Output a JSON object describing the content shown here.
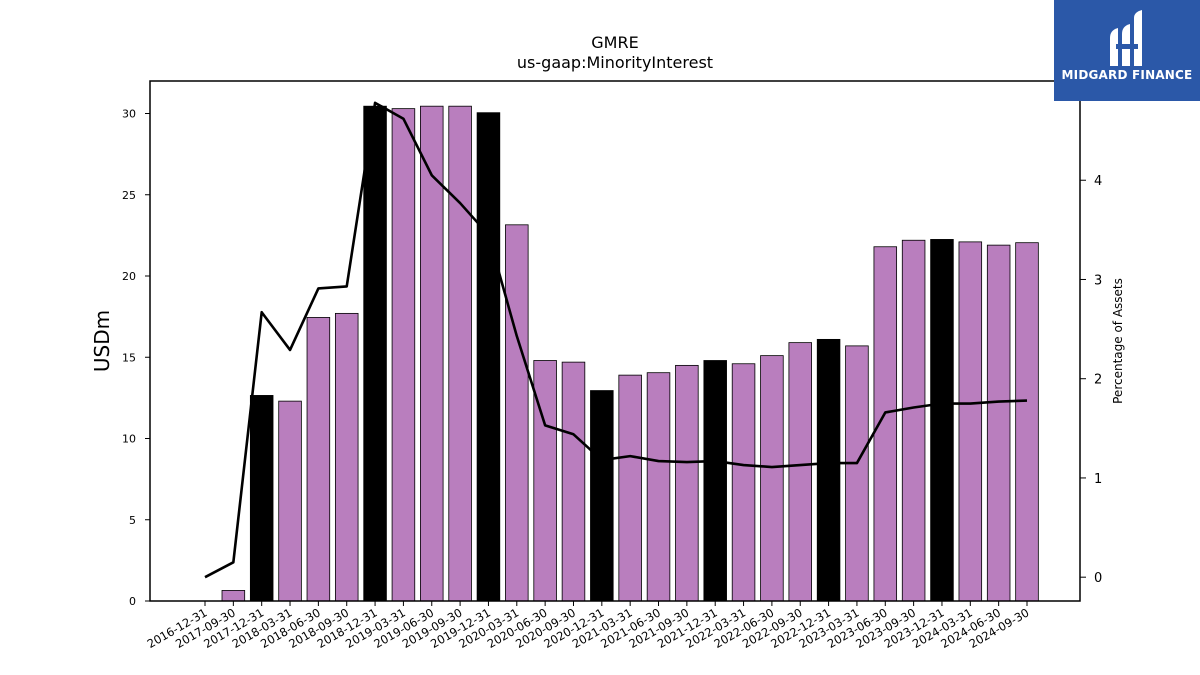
{
  "chart_data": {
    "type": "bar",
    "title": "GMRE",
    "subtitle": "us-gaap:MinorityInterest",
    "ylabel": "USDm",
    "y2label": "Percentage of Assets",
    "ylim": [
      0,
      32
    ],
    "y2lim": [
      -0.24,
      5.0
    ],
    "yticks": [
      0,
      5,
      10,
      15,
      20,
      25,
      30
    ],
    "y2ticks": [
      0,
      1,
      2,
      3,
      4
    ],
    "categories": [
      "2016-12-31",
      "2017-09-30",
      "2017-12-31",
      "2018-03-31",
      "2018-06-30",
      "2018-09-30",
      "2018-12-31",
      "2019-03-31",
      "2019-06-30",
      "2019-09-30",
      "2019-12-31",
      "2020-03-31",
      "2020-06-30",
      "2020-09-30",
      "2020-12-31",
      "2021-03-31",
      "2021-06-30",
      "2021-09-30",
      "2021-12-31",
      "2022-03-31",
      "2022-06-30",
      "2022-09-30",
      "2022-12-31",
      "2023-03-31",
      "2023-06-30",
      "2023-09-30",
      "2023-12-31",
      "2024-03-31",
      "2024-06-30",
      "2024-09-30"
    ],
    "series": [
      {
        "type": "bar",
        "values": [
          0,
          0.65,
          12.65,
          12.3,
          17.45,
          17.7,
          30.45,
          30.3,
          30.45,
          30.45,
          30.05,
          23.15,
          14.8,
          14.7,
          12.95,
          13.9,
          14.05,
          14.5,
          14.8,
          14.6,
          15.1,
          15.9,
          16.1,
          15.7,
          21.8,
          22.2,
          22.25,
          22.1,
          21.9,
          22.05
        ],
        "highlight": [
          false,
          false,
          true,
          false,
          false,
          false,
          true,
          false,
          false,
          false,
          true,
          false,
          false,
          false,
          true,
          false,
          false,
          false,
          true,
          false,
          false,
          false,
          true,
          false,
          false,
          false,
          true,
          false,
          false,
          false
        ],
        "color": "#b97ebe",
        "highlight_color": "#000000"
      },
      {
        "type": "line",
        "axis": "right",
        "values": [
          0.0,
          0.15,
          2.67,
          2.29,
          2.91,
          2.93,
          4.78,
          4.62,
          4.05,
          3.77,
          3.45,
          2.43,
          1.53,
          1.44,
          1.18,
          1.22,
          1.17,
          1.16,
          1.17,
          1.13,
          1.11,
          1.13,
          1.15,
          1.15,
          1.66,
          1.71,
          1.75,
          1.75,
          1.77,
          1.78
        ],
        "color": "#000000"
      }
    ]
  },
  "logo": {
    "text": "MIDGARD FINANCE",
    "mark": "midgard-logo-mark"
  }
}
